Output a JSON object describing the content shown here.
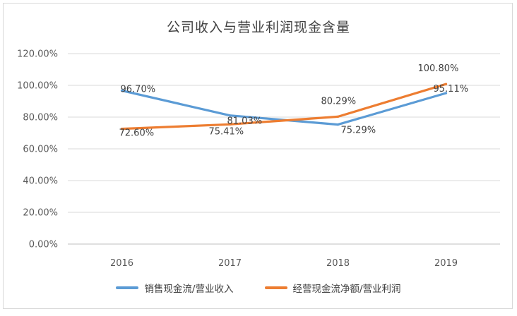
{
  "chart_data": {
    "type": "line",
    "title": "公司收入与营业利润现金含量",
    "categories": [
      "2016",
      "2017",
      "2018",
      "2019"
    ],
    "y_ticks": [
      "0.00%",
      "20.00%",
      "40.00%",
      "60.00%",
      "80.00%",
      "100.00%",
      "120.00%"
    ],
    "ylim": [
      0,
      120
    ],
    "grid": true,
    "legend_position": "bottom",
    "series": [
      {
        "name": "销售现金流/营业收入",
        "color": "#5b9bd5",
        "values": [
          96.7,
          81.03,
          75.29,
          95.11
        ],
        "labels": [
          "96.70%",
          "81.03%",
          "75.29%",
          "95.11%"
        ]
      },
      {
        "name": "经营现金流净额/营业利润",
        "color": "#ed7d31",
        "values": [
          72.6,
          75.41,
          80.29,
          100.8
        ],
        "labels": [
          "72.60%",
          "75.41%",
          "80.29%",
          "100.80%"
        ]
      }
    ]
  }
}
